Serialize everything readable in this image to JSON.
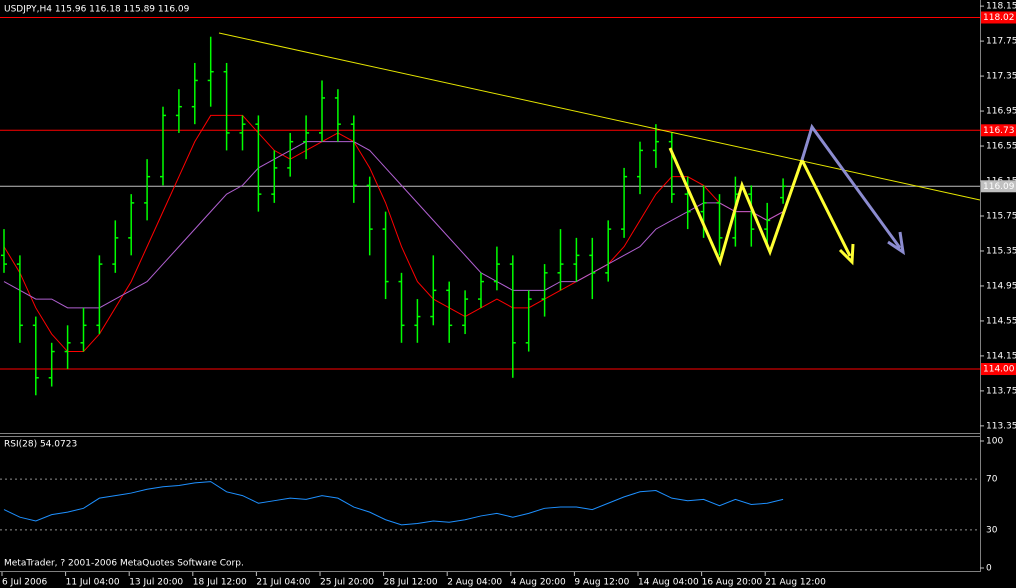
{
  "chart_data": {
    "type": "candlestick",
    "title": "USDJPY,H4  115.96 116.18 115.89 116.09",
    "categories": [
      "6 Jul 2006",
      null,
      null,
      null,
      "11 Jul 04:00",
      null,
      null,
      null,
      "13 Jul 20:00",
      null,
      null,
      null,
      "18 Jul 12:00",
      null,
      null,
      null,
      "21 Jul 04:00",
      null,
      null,
      null,
      "25 Jul 20:00",
      null,
      null,
      null,
      "28 Jul 12:00",
      null,
      null,
      null,
      "2 Aug 04:00",
      null,
      null,
      null,
      "4 Aug 20:00",
      null,
      null,
      null,
      "9 Aug 12:00",
      null,
      null,
      null,
      "14 Aug 04:00",
      null,
      null,
      null,
      "16 Aug 20:00",
      null,
      null,
      null,
      "21 Aug 12:00",
      null
    ],
    "open": [
      115.3,
      115.2,
      114.5,
      113.9,
      114.2,
      114.3,
      114.5,
      115.2,
      115.5,
      115.9,
      116.2,
      116.9,
      117.0,
      117.3,
      117.4,
      116.7,
      116.8,
      116.0,
      116.3,
      116.6,
      116.7,
      117.1,
      116.8,
      116.1,
      115.6,
      115.0,
      114.5,
      114.6,
      114.9,
      114.5,
      114.8,
      115.0,
      115.2,
      114.3,
      114.8,
      115.1,
      115.2,
      115.3,
      115.1,
      115.6,
      116.2,
      116.5,
      116.6,
      116.0,
      115.8,
      115.9,
      115.5,
      116.0,
      115.6,
      115.96
    ],
    "high": [
      115.6,
      115.3,
      114.6,
      114.3,
      114.5,
      114.7,
      115.3,
      115.7,
      116.0,
      116.4,
      117.0,
      117.2,
      117.5,
      117.8,
      117.5,
      116.9,
      116.9,
      116.5,
      116.7,
      116.9,
      117.3,
      117.2,
      116.9,
      116.2,
      115.8,
      115.1,
      114.8,
      115.3,
      115.0,
      114.9,
      115.1,
      115.4,
      115.3,
      114.9,
      115.2,
      115.6,
      115.5,
      115.5,
      115.7,
      116.3,
      116.6,
      116.8,
      116.7,
      116.2,
      116.1,
      116.0,
      116.2,
      116.1,
      115.9,
      116.18
    ],
    "low": [
      115.1,
      114.3,
      113.7,
      113.8,
      114.0,
      114.2,
      114.4,
      115.1,
      115.3,
      115.7,
      116.1,
      116.7,
      116.8,
      117.0,
      116.5,
      116.5,
      115.8,
      115.9,
      116.2,
      116.4,
      116.6,
      116.6,
      115.9,
      115.3,
      114.8,
      114.3,
      114.3,
      114.5,
      114.3,
      114.4,
      114.7,
      114.9,
      113.9,
      114.2,
      114.6,
      114.9,
      115.0,
      114.8,
      115.0,
      115.5,
      116.0,
      116.3,
      115.9,
      115.6,
      115.5,
      115.3,
      115.4,
      115.4,
      115.4,
      115.89
    ],
    "close": [
      115.2,
      114.5,
      113.9,
      114.2,
      114.3,
      114.5,
      115.2,
      115.5,
      115.9,
      116.2,
      116.9,
      117.0,
      117.3,
      117.4,
      116.7,
      116.8,
      116.0,
      116.3,
      116.6,
      116.7,
      117.1,
      116.8,
      116.1,
      115.6,
      115.0,
      114.5,
      114.6,
      114.9,
      114.5,
      114.8,
      115.0,
      115.2,
      114.3,
      114.8,
      115.1,
      115.2,
      115.3,
      115.1,
      115.6,
      116.2,
      116.5,
      116.6,
      116.0,
      115.8,
      115.9,
      115.5,
      116.0,
      115.6,
      115.7,
      116.09
    ],
    "color": "#00ff00",
    "overlays": [
      {
        "color": "#ff0000",
        "values": [
          115.4,
          115.1,
          114.7,
          114.4,
          114.2,
          114.2,
          114.4,
          114.7,
          115.0,
          115.4,
          115.8,
          116.2,
          116.6,
          116.9,
          116.9,
          116.9,
          116.7,
          116.5,
          116.4,
          116.5,
          116.6,
          116.7,
          116.6,
          116.3,
          115.9,
          115.4,
          115.0,
          114.8,
          114.7,
          114.6,
          114.7,
          114.8,
          114.7,
          114.7,
          114.8,
          114.9,
          115.0,
          115.1,
          115.2,
          115.4,
          115.7,
          116.0,
          116.2,
          116.2,
          116.1,
          115.9,
          115.8,
          115.8,
          115.7,
          115.8
        ]
      },
      {
        "color": "#b060d0",
        "values": [
          115.0,
          114.9,
          114.8,
          114.8,
          114.7,
          114.7,
          114.7,
          114.8,
          114.9,
          115.0,
          115.2,
          115.4,
          115.6,
          115.8,
          116.0,
          116.1,
          116.3,
          116.4,
          116.5,
          116.6,
          116.6,
          116.6,
          116.6,
          116.5,
          116.3,
          116.1,
          115.9,
          115.7,
          115.5,
          115.3,
          115.1,
          115.0,
          114.9,
          114.9,
          114.9,
          115.0,
          115.0,
          115.1,
          115.2,
          115.3,
          115.4,
          115.6,
          115.7,
          115.8,
          115.9,
          115.9,
          115.8,
          115.8,
          115.7,
          115.8
        ]
      }
    ],
    "ylim": [
      113.28,
      118.22
    ],
    "yticks": [
      118.15,
      117.75,
      117.35,
      116.95,
      116.55,
      116.15,
      115.75,
      115.35,
      114.95,
      114.55,
      114.15,
      113.75,
      113.35
    ],
    "hlines": [
      {
        "value": 118.02,
        "label": "118.02",
        "color": "#ff0000"
      },
      {
        "value": 116.73,
        "label": "116.73",
        "color": "#ff0000"
      },
      {
        "value": 116.09,
        "label": "116.09",
        "color": "#c0c0c0"
      },
      {
        "value": 114,
        "label": "114.00",
        "color": "#ff0000"
      }
    ],
    "rsi": {
      "title": "RSI(28) 54.0723",
      "color": "#1e90ff",
      "values": [
        46,
        40,
        37,
        42,
        44,
        47,
        55,
        57,
        59,
        62,
        64,
        65,
        67,
        68,
        60,
        57,
        51,
        53,
        55,
        54,
        57,
        55,
        48,
        44,
        38,
        34,
        35,
        37,
        36,
        38,
        41,
        43,
        40,
        43,
        47,
        48,
        48,
        46,
        51,
        56,
        60,
        61,
        55,
        53,
        54,
        49,
        54,
        50,
        51,
        54.0723
      ],
      "ylim": [
        0,
        100
      ],
      "yticks": [
        100,
        70,
        30,
        0
      ]
    },
    "copyright": "MetaTrader, ? 2001-2006 MetaQuotes Software Corp."
  }
}
